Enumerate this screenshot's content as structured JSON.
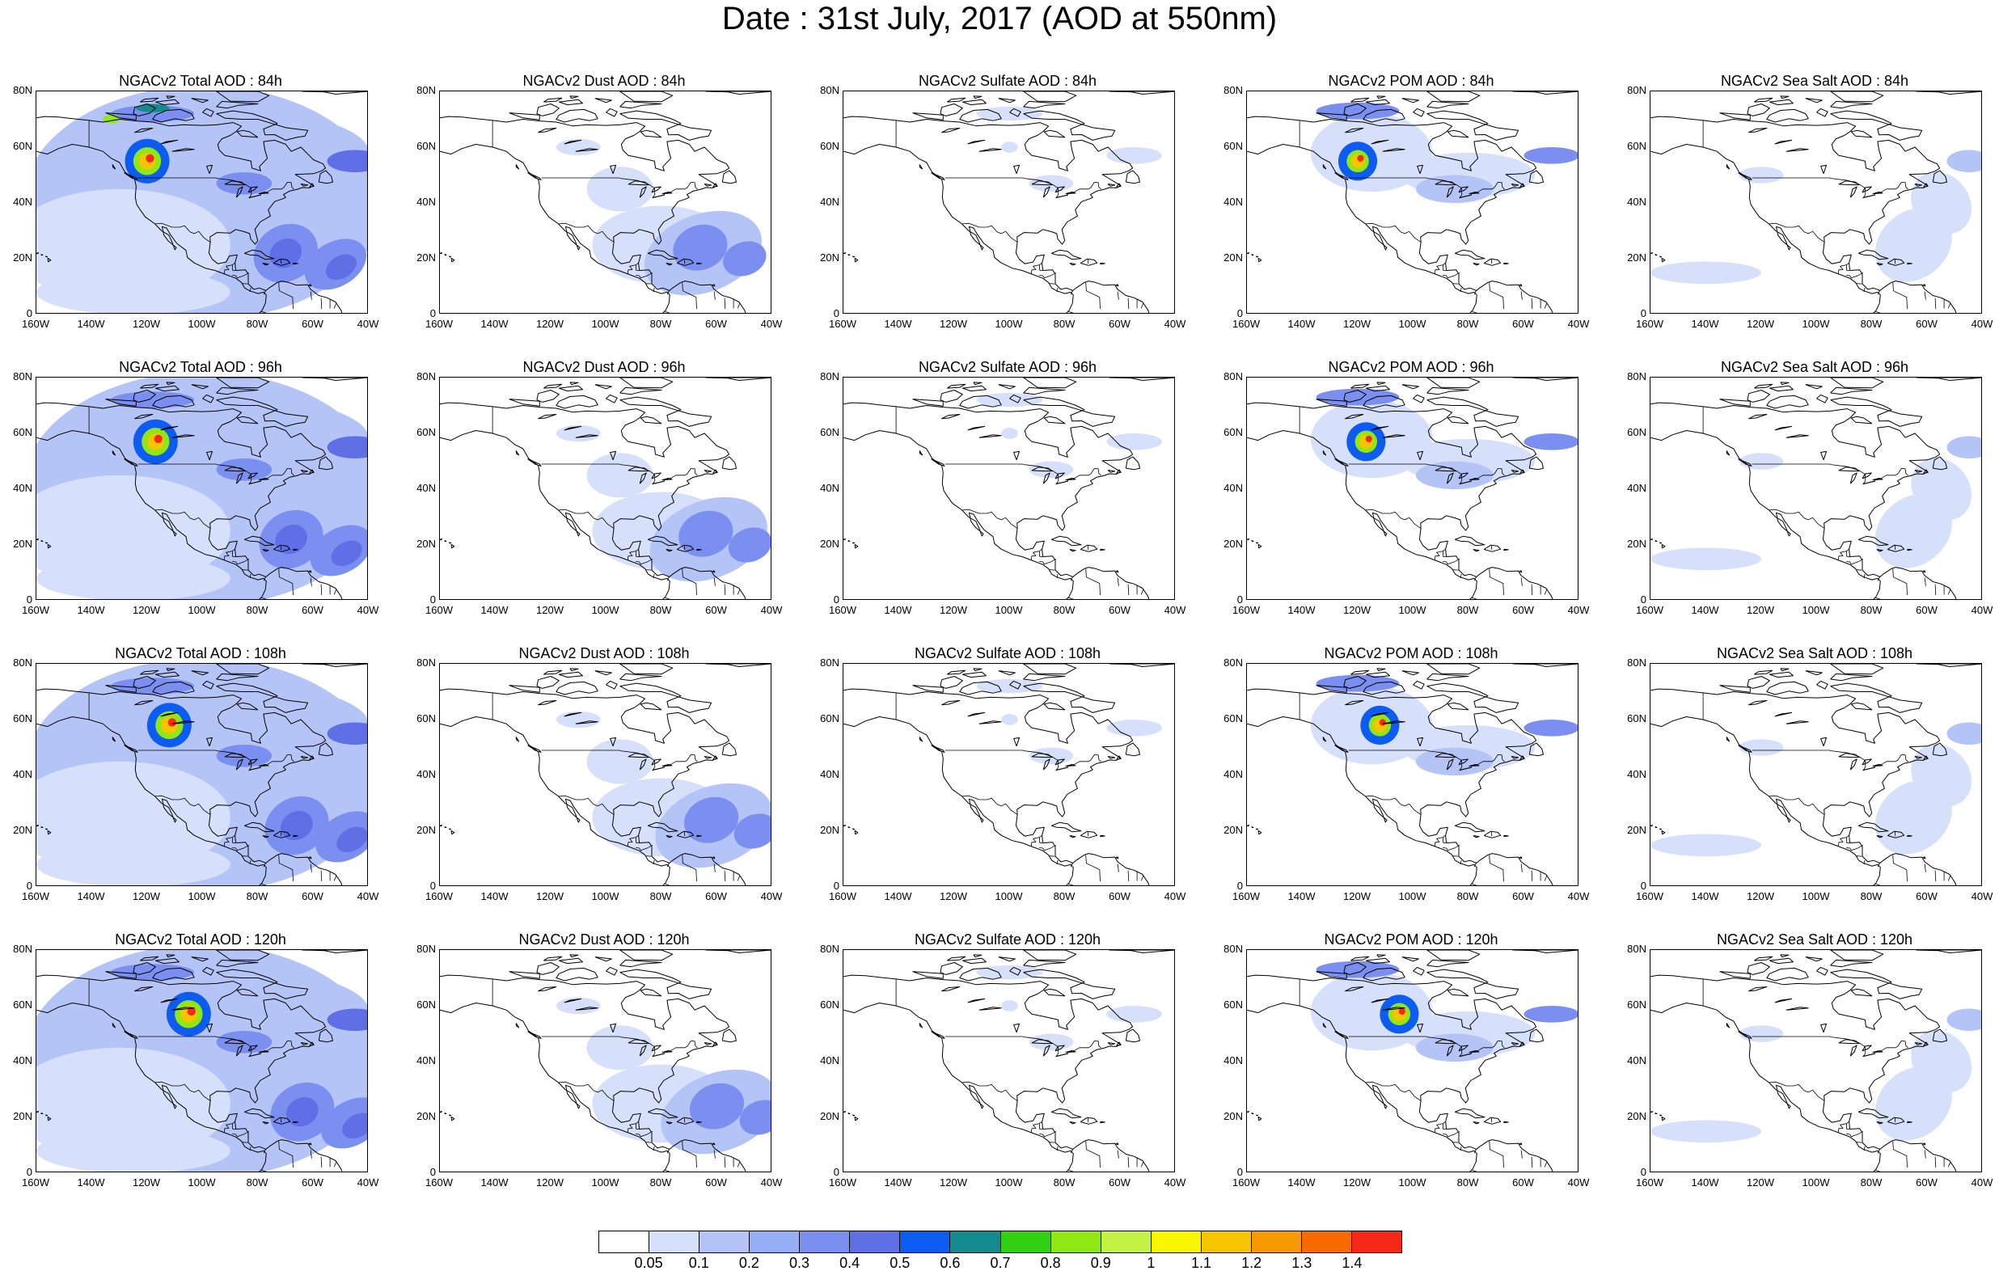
{
  "title": "Date : 31st July, 2017 (AOD at 550nm)",
  "y_ticks": [
    "80N",
    "60N",
    "40N",
    "20N",
    "0"
  ],
  "x_ticks": [
    "160W",
    "140W",
    "120W",
    "100W",
    "80W",
    "60W",
    "40W"
  ],
  "colorbar": {
    "colors": [
      "#ffffff",
      "#d6e0fb",
      "#b4c4f6",
      "#96aef5",
      "#7b8ff0",
      "#5f6fe6",
      "#0c5cf1",
      "#138a8e",
      "#34d013",
      "#8fe813",
      "#c3f244",
      "#f8f700",
      "#f6c500",
      "#f79a00",
      "#f66a00",
      "#f5281a"
    ],
    "labels": [
      "0.05",
      "0.1",
      "0.2",
      "0.3",
      "0.4",
      "0.5",
      "0.6",
      "0.7",
      "0.8",
      "0.9",
      "1",
      "1.1",
      "1.2",
      "1.3",
      "1.4"
    ]
  },
  "panels": [
    {
      "title": "NGACv2 Total AOD : 84h",
      "product": "total",
      "hour": 84
    },
    {
      "title": "NGACv2 Dust AOD : 84h",
      "product": "dust",
      "hour": 84
    },
    {
      "title": "NGACv2 Sulfate AOD : 84h",
      "product": "sulfate",
      "hour": 84
    },
    {
      "title": "NGACv2 POM AOD : 84h",
      "product": "pom",
      "hour": 84
    },
    {
      "title": "NGACv2 Sea Salt AOD : 84h",
      "product": "seasalt",
      "hour": 84
    },
    {
      "title": "NGACv2 Total AOD : 96h",
      "product": "total",
      "hour": 96
    },
    {
      "title": "NGACv2 Dust AOD : 96h",
      "product": "dust",
      "hour": 96
    },
    {
      "title": "NGACv2 Sulfate AOD : 96h",
      "product": "sulfate",
      "hour": 96
    },
    {
      "title": "NGACv2 POM AOD : 96h",
      "product": "pom",
      "hour": 96
    },
    {
      "title": "NGACv2 Sea Salt AOD : 96h",
      "product": "seasalt",
      "hour": 96
    },
    {
      "title": "NGACv2 Total AOD : 108h",
      "product": "total",
      "hour": 108
    },
    {
      "title": "NGACv2 Dust AOD : 108h",
      "product": "dust",
      "hour": 108
    },
    {
      "title": "NGACv2 Sulfate AOD : 108h",
      "product": "sulfate",
      "hour": 108
    },
    {
      "title": "NGACv2 POM AOD : 108h",
      "product": "pom",
      "hour": 108
    },
    {
      "title": "NGACv2 Sea Salt AOD : 108h",
      "product": "seasalt",
      "hour": 108
    },
    {
      "title": "NGACv2 Total AOD : 120h",
      "product": "total",
      "hour": 120
    },
    {
      "title": "NGACv2 Dust AOD : 120h",
      "product": "dust",
      "hour": 120
    },
    {
      "title": "NGACv2 Sulfate AOD : 120h",
      "product": "sulfate",
      "hour": 120
    },
    {
      "title": "NGACv2 POM AOD : 120h",
      "product": "pom",
      "hour": 120
    },
    {
      "title": "NGACv2 Sea Salt  AOD : 120h",
      "product": "seasalt",
      "hour": 120
    }
  ]
}
